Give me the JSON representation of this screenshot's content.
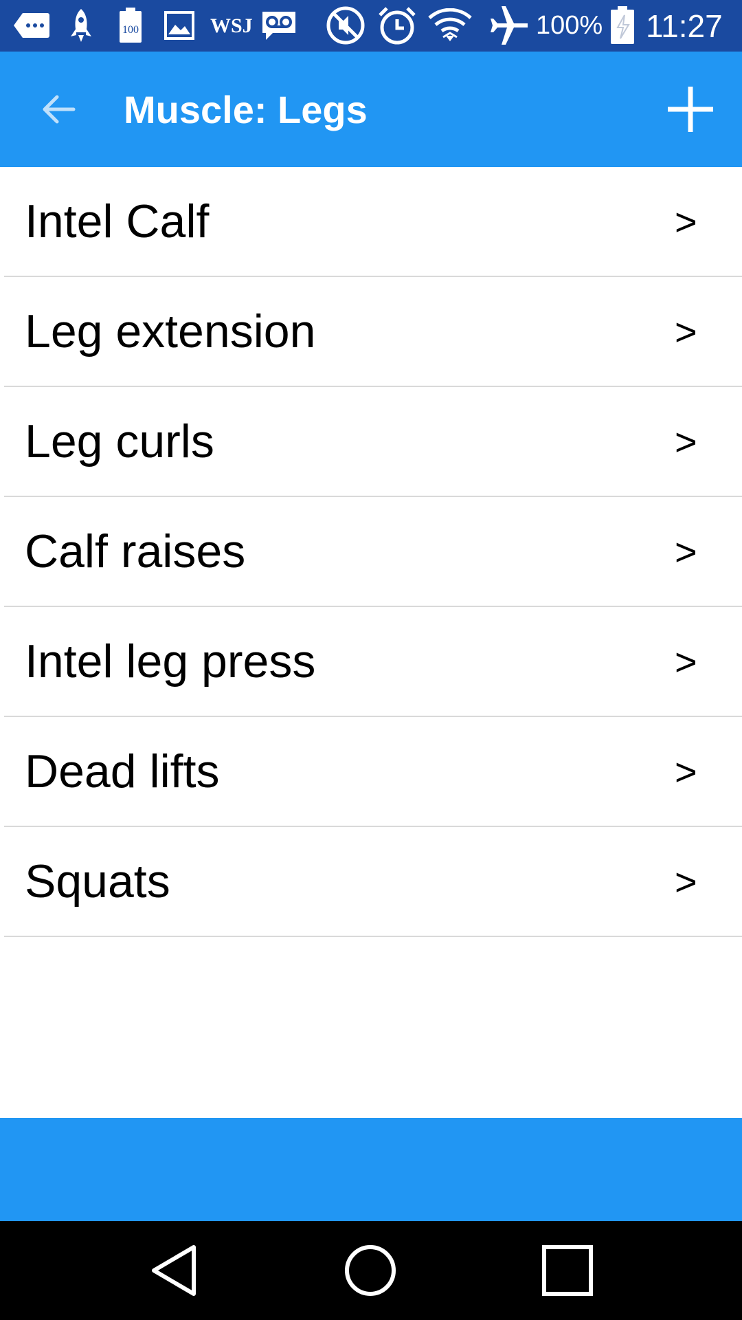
{
  "status_bar": {
    "battery_percent": "100%",
    "time": "11:27",
    "wsj_label": "WSJ",
    "battery_notif_label": "100",
    "icons": [
      "message-icon",
      "rocket-icon",
      "battery-notification-icon",
      "image-icon",
      "wsj-icon",
      "voicemail-icon",
      "mute-icon",
      "alarm-icon",
      "wifi-icon",
      "airplane-mode-icon",
      "battery-icon"
    ]
  },
  "app_bar": {
    "title": "Muscle: Legs"
  },
  "exercises": [
    {
      "label": "Intel Calf",
      "chevron": ">"
    },
    {
      "label": "Leg extension",
      "chevron": ">"
    },
    {
      "label": "Leg curls",
      "chevron": ">"
    },
    {
      "label": "Calf raises",
      "chevron": ">"
    },
    {
      "label": "Intel leg press",
      "chevron": ">"
    },
    {
      "label": "Dead lifts",
      "chevron": ">"
    },
    {
      "label": "Squats",
      "chevron": ">"
    }
  ],
  "colors": {
    "status_bar": "#1a4aa0",
    "app_bar": "#2196f3",
    "nav_bar": "#000000",
    "divider": "#d9d9d9"
  }
}
